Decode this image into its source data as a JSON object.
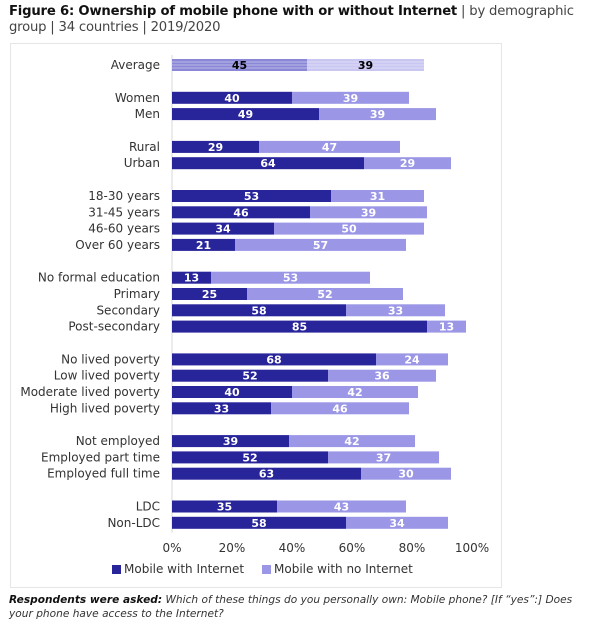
{
  "header": {
    "title_bold": "Figure 6: Ownership of mobile phone with or without Internet",
    "title_rest": " | by demographic group | 34 countries | 2019/2020"
  },
  "footer": {
    "question_label": "Respondents were asked:",
    "question_text": " Which of these things do you personally own: Mobile phone? [If “yes”:] Does your phone have access to the Internet?"
  },
  "colors": {
    "with_internet": "#28249a",
    "no_internet": "#9b97e6",
    "avg_with_internet": "#8a87d6",
    "avg_no_internet": "#c9c7f2",
    "axis_line": "#d9d9d9"
  },
  "chart_data": {
    "type": "bar",
    "orientation": "horizontal",
    "stacked": true,
    "title": "Ownership of mobile phone with or without Internet",
    "xlabel": "",
    "ylabel": "",
    "xlim": [
      0,
      100
    ],
    "x_ticks": [
      "0%",
      "20%",
      "40%",
      "60%",
      "80%",
      "100%"
    ],
    "grid": false,
    "legend_position": "bottom",
    "series": [
      {
        "name": "Mobile with Internet",
        "values": [
          45,
          40,
          49,
          29,
          64,
          53,
          46,
          34,
          21,
          13,
          25,
          58,
          85,
          68,
          52,
          40,
          33,
          39,
          52,
          63,
          35,
          58
        ]
      },
      {
        "name": "Mobile with no Internet",
        "values": [
          39,
          39,
          39,
          47,
          29,
          31,
          39,
          50,
          57,
          53,
          52,
          33,
          13,
          24,
          36,
          42,
          46,
          42,
          37,
          30,
          43,
          34
        ]
      }
    ],
    "categories": [
      "Average",
      "Women",
      "Men",
      "Rural",
      "Urban",
      "18-30 years",
      "31-45 years",
      "46-60 years",
      "Over 60 years",
      "No formal education",
      "Primary",
      "Secondary",
      "Post-secondary",
      "No lived poverty",
      "Low lived poverty",
      "Moderate lived poverty",
      "High lived poverty",
      "Not employed",
      "Employed part time",
      "Employed full time",
      "LDC",
      "Non-LDC"
    ],
    "groups": [
      [
        "Average"
      ],
      [
        "Women",
        "Men"
      ],
      [
        "Rural",
        "Urban"
      ],
      [
        "18-30 years",
        "31-45 years",
        "46-60 years",
        "Over 60 years"
      ],
      [
        "No formal education",
        "Primary",
        "Secondary",
        "Post-secondary"
      ],
      [
        "No lived poverty",
        "Low lived poverty",
        "Moderate lived poverty",
        "High lived poverty"
      ],
      [
        "Not employed",
        "Employed part time",
        "Employed full time"
      ],
      [
        "LDC",
        "Non-LDC"
      ]
    ],
    "highlighted_category": "Average"
  }
}
